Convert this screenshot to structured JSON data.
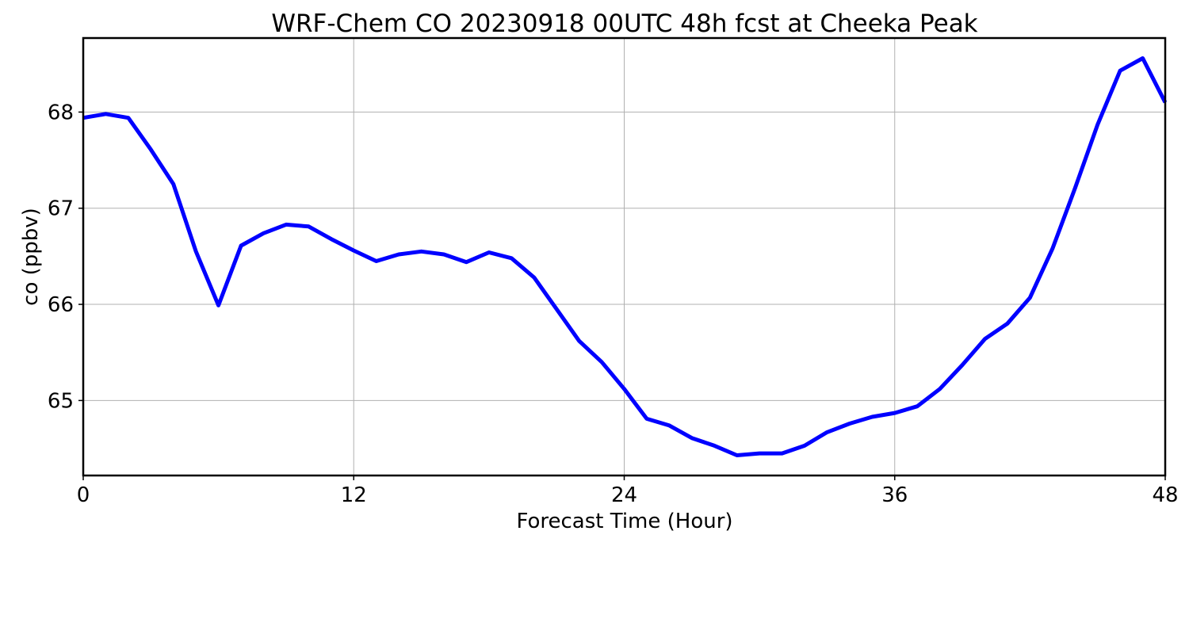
{
  "chart_data": {
    "type": "line",
    "title": "WRF-Chem CO  20230918 00UTC 48h fcst at Cheeka Peak",
    "xlabel": "Forecast Time (Hour)",
    "ylabel": "co  (ppbv)",
    "xlim": [
      0,
      48
    ],
    "ylim": [
      64.22,
      68.77
    ],
    "xticks": [
      0,
      12,
      24,
      36,
      48
    ],
    "yticks": [
      65,
      66,
      67,
      68
    ],
    "grid": true,
    "line_color": "#0000ff",
    "series": [
      {
        "x": [
          0,
          1,
          2,
          3,
          4,
          5,
          6,
          7,
          8,
          9,
          10,
          11,
          12,
          13,
          14,
          15,
          16,
          17,
          18,
          19,
          20,
          21,
          22,
          23,
          24,
          25,
          26,
          27,
          28,
          29,
          30,
          31,
          32,
          33,
          34,
          35,
          36,
          37,
          38,
          39,
          40,
          41,
          42,
          43,
          44,
          45,
          46,
          47,
          48
        ],
        "values": [
          67.94,
          67.98,
          67.94,
          67.61,
          67.25,
          66.55,
          65.99,
          66.61,
          66.74,
          66.83,
          66.81,
          66.68,
          66.56,
          66.45,
          66.52,
          66.55,
          66.52,
          66.44,
          66.54,
          66.48,
          66.28,
          65.95,
          65.62,
          65.4,
          65.12,
          64.81,
          64.74,
          64.61,
          64.53,
          64.43,
          64.45,
          64.45,
          64.53,
          64.67,
          64.76,
          64.83,
          64.87,
          64.94,
          65.12,
          65.37,
          65.64,
          65.8,
          66.07,
          66.58,
          67.21,
          67.87,
          68.43,
          68.56,
          68.1
        ]
      }
    ]
  }
}
